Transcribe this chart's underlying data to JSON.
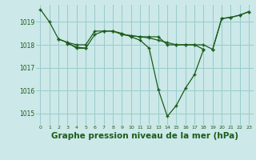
{
  "background_color": "#cce8e8",
  "grid_color": "#99cccc",
  "line_color": "#1a5c1a",
  "marker_color": "#1a5c1a",
  "xlabel": "Graphe pression niveau de la mer (hPa)",
  "xlabel_fontsize": 7.5,
  "ylim": [
    1014.5,
    1019.75
  ],
  "yticks": [
    1015,
    1016,
    1017,
    1018,
    1019
  ],
  "xticks": [
    0,
    1,
    2,
    3,
    4,
    5,
    6,
    7,
    8,
    9,
    10,
    11,
    12,
    13,
    14,
    15,
    16,
    17,
    18,
    19,
    20,
    21,
    22,
    23
  ],
  "series": [
    [
      1019.55,
      1019.0,
      1018.25,
      1018.1,
      1018.0,
      1018.0,
      1018.6,
      1018.6,
      1018.6,
      1018.45,
      1018.4,
      1018.35,
      1018.35,
      1018.35,
      1018.0,
      1018.0,
      1018.0,
      1018.0,
      1018.0,
      1017.8,
      1019.15,
      1019.2,
      1019.3,
      1019.45
    ],
    [
      null,
      null,
      1018.25,
      1018.1,
      1017.85,
      1017.85,
      null,
      null,
      null,
      1018.45,
      1018.4,
      1018.35,
      1018.3,
      1018.2,
      1018.1,
      1018.0,
      1018.0,
      1018.0,
      1017.8,
      null,
      null,
      null,
      null,
      null
    ],
    [
      null,
      null,
      null,
      1018.05,
      1017.9,
      1017.85,
      1018.45,
      1018.6,
      1018.6,
      1018.5,
      1018.35,
      1018.2,
      1017.85,
      1016.05,
      1014.87,
      1015.35,
      1016.1,
      1016.7,
      1017.8,
      null,
      null,
      null,
      null,
      null
    ],
    [
      null,
      null,
      null,
      null,
      null,
      null,
      null,
      null,
      null,
      null,
      null,
      null,
      null,
      null,
      null,
      null,
      null,
      null,
      null,
      1017.8,
      1019.15,
      1019.2,
      1019.3,
      1019.45
    ]
  ]
}
